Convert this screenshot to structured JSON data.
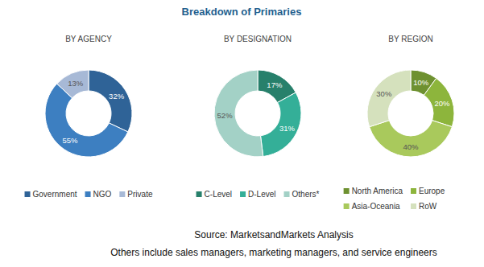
{
  "title": "Breakdown of Primaries",
  "source": "Source: MarketsandMarkets Analysis",
  "footnote": "Others include sales managers, marketing managers, and service engineers",
  "chart_data": [
    {
      "type": "donut",
      "title": "BY AGENCY",
      "categories": [
        "Government",
        "NGO",
        "Private"
      ],
      "values": [
        32,
        55,
        13
      ],
      "value_labels": [
        "32%",
        "55%",
        "13%"
      ],
      "colors": [
        "#2f6397",
        "#3d7fc1",
        "#a7b9d6"
      ],
      "data_labels": true
    },
    {
      "type": "donut",
      "title": "BY DESIGNATION",
      "categories": [
        "C-Level",
        "D-Level",
        "Others*"
      ],
      "values": [
        17,
        31,
        52
      ],
      "value_labels": [
        "17%",
        "31%",
        "52%"
      ],
      "colors": [
        "#27806b",
        "#34af98",
        "#a3d1c6"
      ],
      "data_labels": true
    },
    {
      "type": "donut",
      "title": "BY REGION",
      "categories": [
        "North America",
        "Europe",
        "Asia-Oceania",
        "RoW"
      ],
      "values": [
        10,
        20,
        40,
        30
      ],
      "value_labels": [
        "10%",
        "20%",
        "40%",
        "30%"
      ],
      "colors": [
        "#6e9130",
        "#8db53c",
        "#a9c95c",
        "#d5e1bd"
      ],
      "data_labels": true
    }
  ]
}
